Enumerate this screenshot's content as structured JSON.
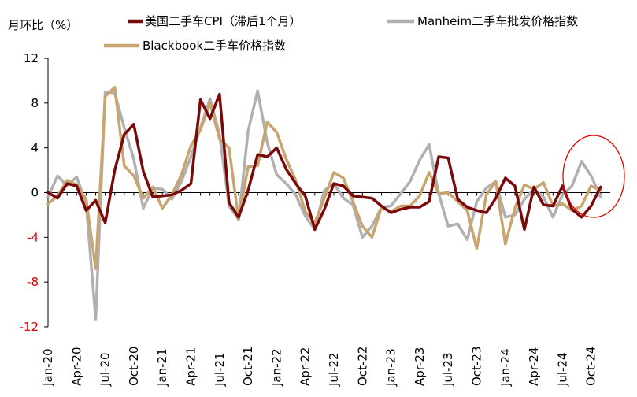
{
  "chart_data": {
    "type": "line",
    "ylabel": "月环比（%）",
    "ylim": [
      -12,
      12
    ],
    "yticks": [
      12,
      8,
      4,
      0,
      -4,
      -8,
      -12
    ],
    "ytick_labels": [
      "12",
      "8",
      "4",
      "0",
      "-4",
      "-8",
      "-12"
    ],
    "x_tick_labels": [
      "Jan-20",
      "Apr-20",
      "Jul-20",
      "Oct-20",
      "Jan-21",
      "Apr-21",
      "Jul-21",
      "Oct-21",
      "Jan-22",
      "Apr-22",
      "Jul-22",
      "Oct-22",
      "Jan-23",
      "Apr-23",
      "Jul-23",
      "Oct-23",
      "Jan-24",
      "Apr-24",
      "Jul-24",
      "Oct-24"
    ],
    "months": [
      "Jan-20",
      "Feb-20",
      "Mar-20",
      "Apr-20",
      "May-20",
      "Jun-20",
      "Jul-20",
      "Aug-20",
      "Sep-20",
      "Oct-20",
      "Nov-20",
      "Dec-20",
      "Jan-21",
      "Feb-21",
      "Mar-21",
      "Apr-21",
      "May-21",
      "Jun-21",
      "Jul-21",
      "Aug-21",
      "Sep-21",
      "Oct-21",
      "Nov-21",
      "Dec-21",
      "Jan-22",
      "Feb-22",
      "Mar-22",
      "Apr-22",
      "May-22",
      "Jun-22",
      "Jul-22",
      "Aug-22",
      "Sep-22",
      "Oct-22",
      "Nov-22",
      "Dec-22",
      "Jan-23",
      "Feb-23",
      "Mar-23",
      "Apr-23",
      "May-23",
      "Jun-23",
      "Jul-23",
      "Aug-23",
      "Sep-23",
      "Oct-23",
      "Nov-23",
      "Dec-23",
      "Jan-24",
      "Feb-24",
      "Mar-24",
      "Apr-24",
      "May-24",
      "Jun-24",
      "Jul-24",
      "Aug-24",
      "Sep-24",
      "Oct-24",
      "Nov-24"
    ],
    "series": [
      {
        "name": "美国二手车CPI（滞后1个月）",
        "color": "#7a0a0a",
        "values": [
          0,
          -0.5,
          0.8,
          0.6,
          -1.6,
          -0.7,
          -2.7,
          2.0,
          5.2,
          6.1,
          1.9,
          -0.4,
          -0.3,
          -0.2,
          0.2,
          0.8,
          8.3,
          6.6,
          8.8,
          -0.9,
          -2.2,
          0.2,
          3.4,
          3.2,
          4.0,
          2.1,
          0.8,
          -0.3,
          -3.3,
          -1.5,
          0.8,
          0.6,
          -0.3,
          -0.4,
          -0.5,
          -1.2,
          -1.8,
          -1.5,
          -1.3,
          -1.3,
          -0.8,
          3.2,
          3.1,
          -0.6,
          -1.3,
          -1.6,
          -1.8,
          -0.5,
          1.3,
          0.6,
          -3.3,
          0.5,
          -1.1,
          -1.2,
          0.6,
          -1.5,
          -2.2,
          -1.2,
          0.5
        ]
      },
      {
        "name": "Manheim二手车批发价格指数",
        "color": "#b0b0b0",
        "values": [
          -0.4,
          1.5,
          0.6,
          1.4,
          -1.0,
          -11.3,
          9.0,
          8.9,
          5.8,
          3.0,
          -1.4,
          0.4,
          0.3,
          -0.6,
          1.0,
          3.2,
          5.8,
          8.4,
          5.2,
          -1.2,
          -2.4,
          5.5,
          9.1,
          4.5,
          1.6,
          0.8,
          -0.2,
          -2.1,
          -3.3,
          0.2,
          0.8,
          -0.5,
          -1.1,
          -4.0,
          -3.0,
          -1.3,
          -1.2,
          -0.1,
          1.0,
          2.9,
          4.3,
          -0.1,
          -3.0,
          -2.8,
          -4.2,
          -0.8,
          0.4,
          1.0,
          -2.2,
          -2.0,
          -0.6,
          0.3,
          -0.4,
          -2.2,
          -0.2,
          0.6,
          2.8,
          1.5,
          -0.4
        ]
      },
      {
        "name": "Blackbook二手车价格指数",
        "color": "#c8a46e",
        "values": [
          -1.0,
          -0.3,
          1.1,
          0.7,
          -0.6,
          -6.8,
          8.6,
          9.4,
          2.4,
          1.5,
          -0.5,
          0.5,
          -1.4,
          -0.2,
          1.6,
          4.2,
          5.6,
          8.0,
          4.8,
          4.0,
          -2.4,
          2.3,
          2.4,
          6.3,
          5.4,
          3.0,
          1.1,
          -1.7,
          -2.7,
          -0.5,
          1.8,
          1.3,
          -0.8,
          -3.0,
          -4.0,
          -1.3,
          -1.7,
          -1.2,
          -1.2,
          -0.3,
          1.8,
          -0.1,
          0,
          -0.8,
          -1.6,
          -5.0,
          -0.2,
          1.0,
          -4.6,
          -1.4,
          0.7,
          0.3,
          0.9,
          -1.2,
          -1.0,
          -1.6,
          -1.2,
          0.6,
          0.2
        ]
      }
    ]
  }
}
